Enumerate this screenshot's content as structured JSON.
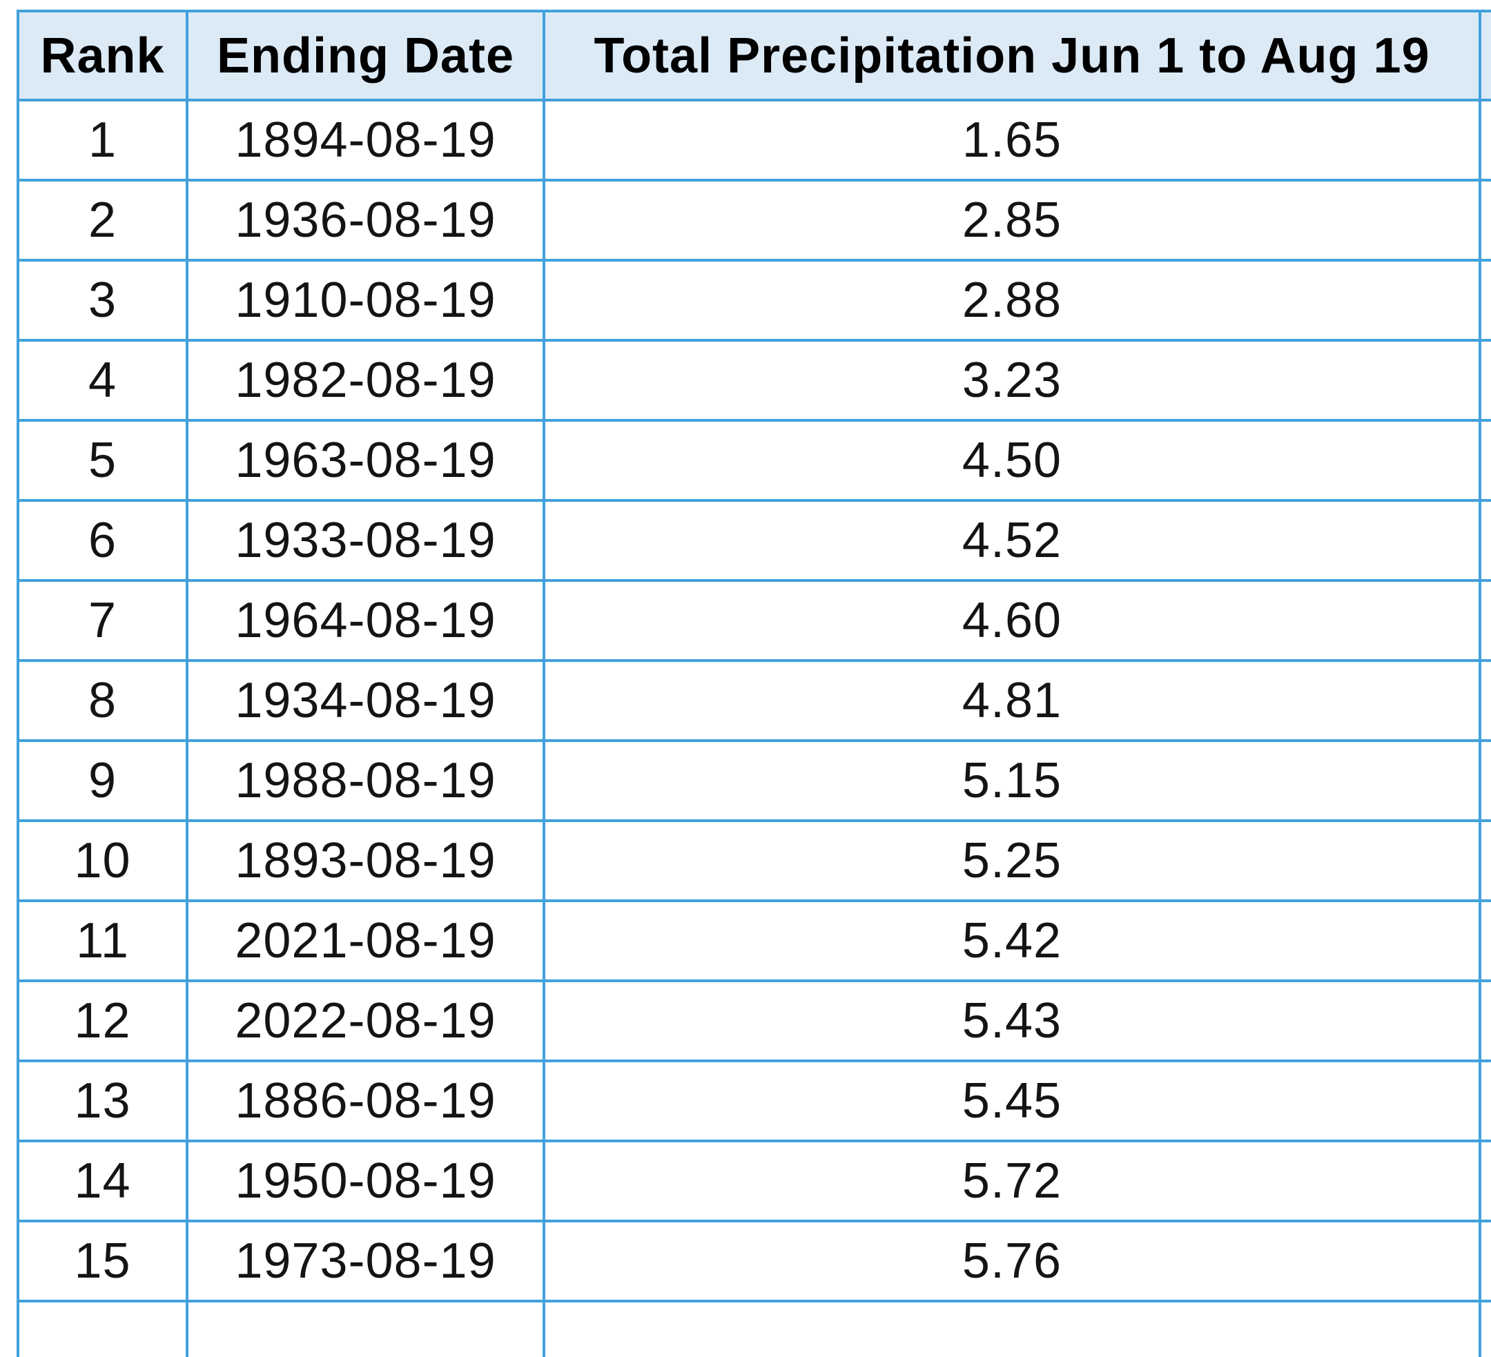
{
  "chart_data": {
    "type": "table",
    "columns": [
      "Rank",
      "Ending Date",
      "Total Precipitation Jun 1 to Aug 19",
      ""
    ],
    "rows": [
      [
        "1",
        "1894-08-19",
        "1.65"
      ],
      [
        "2",
        "1936-08-19",
        "2.85"
      ],
      [
        "3",
        "1910-08-19",
        "2.88"
      ],
      [
        "4",
        "1982-08-19",
        "3.23"
      ],
      [
        "5",
        "1963-08-19",
        "4.50"
      ],
      [
        "6",
        "1933-08-19",
        "4.52"
      ],
      [
        "7",
        "1964-08-19",
        "4.60"
      ],
      [
        "8",
        "1934-08-19",
        "4.81"
      ],
      [
        "9",
        "1988-08-19",
        "5.15"
      ],
      [
        "10",
        "1893-08-19",
        "5.25"
      ],
      [
        "11",
        "2021-08-19",
        "5.42"
      ],
      [
        "12",
        "2022-08-19",
        "5.43"
      ],
      [
        "13",
        "1886-08-19",
        "5.45"
      ],
      [
        "14",
        "1950-08-19",
        "5.72"
      ],
      [
        "15",
        "1973-08-19",
        "5.76"
      ],
      [
        "",
        "",
        ""
      ]
    ],
    "layout": {
      "partial_trailing_row": true,
      "fourth_column_clipped": true
    }
  },
  "colors": {
    "grid_border": "#42a1dc",
    "header_background": "#dceaf6",
    "header_text": "#000000",
    "cell_text": "#141414",
    "page_background": "#ffffff"
  }
}
